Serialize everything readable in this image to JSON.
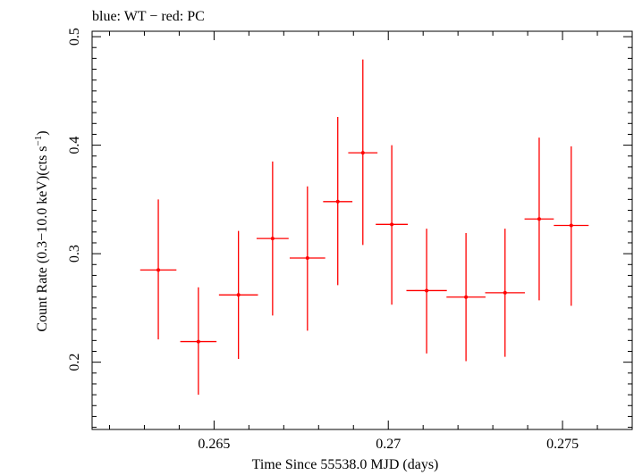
{
  "chart_data": {
    "type": "scatter",
    "title": "blue: WT − red: PC",
    "xlabel": "Time Since 55538.0 MJD (days)",
    "ylabel_main": "Count Rate (0.3−10.0 keV)(cts s",
    "ylabel_sup": "−1",
    "ylabel_close": ")",
    "xlim": [
      0.2615,
      0.277
    ],
    "ylim": [
      0.138,
      0.505
    ],
    "xticks": [
      0.265,
      0.27,
      0.275
    ],
    "xtick_labels": [
      "0.265",
      "0.27",
      "0.275"
    ],
    "yticks": [
      0.2,
      0.3,
      0.4,
      0.5
    ],
    "ytick_labels": [
      "0.2",
      "0.3",
      "0.4",
      "0.5"
    ],
    "grid": false,
    "series": [
      {
        "color": "#ff0000",
        "points": [
          {
            "x": 0.2634,
            "xerr": 0.00052,
            "y": 0.285,
            "ylo": 0.221,
            "yhi": 0.35
          },
          {
            "x": 0.26455,
            "xerr": 0.00052,
            "y": 0.219,
            "ylo": 0.17,
            "yhi": 0.269
          },
          {
            "x": 0.2657,
            "xerr": 0.00056,
            "y": 0.262,
            "ylo": 0.203,
            "yhi": 0.321
          },
          {
            "x": 0.26668,
            "xerr": 0.00046,
            "y": 0.314,
            "ylo": 0.243,
            "yhi": 0.385
          },
          {
            "x": 0.26768,
            "xerr": 0.00051,
            "y": 0.296,
            "ylo": 0.229,
            "yhi": 0.362
          },
          {
            "x": 0.26855,
            "xerr": 0.00042,
            "y": 0.348,
            "ylo": 0.271,
            "yhi": 0.426
          },
          {
            "x": 0.26927,
            "xerr": 0.00042,
            "y": 0.393,
            "ylo": 0.308,
            "yhi": 0.479
          },
          {
            "x": 0.2701,
            "xerr": 0.00046,
            "y": 0.327,
            "ylo": 0.253,
            "yhi": 0.4
          },
          {
            "x": 0.2711,
            "xerr": 0.00058,
            "y": 0.266,
            "ylo": 0.208,
            "yhi": 0.323
          },
          {
            "x": 0.27223,
            "xerr": 0.00056,
            "y": 0.26,
            "ylo": 0.201,
            "yhi": 0.319
          },
          {
            "x": 0.27335,
            "xerr": 0.00057,
            "y": 0.264,
            "ylo": 0.205,
            "yhi": 0.323
          },
          {
            "x": 0.27433,
            "xerr": 0.00042,
            "y": 0.332,
            "ylo": 0.257,
            "yhi": 0.407
          },
          {
            "x": 0.27525,
            "xerr": 0.0005,
            "y": 0.326,
            "ylo": 0.252,
            "yhi": 0.399
          }
        ]
      }
    ]
  }
}
